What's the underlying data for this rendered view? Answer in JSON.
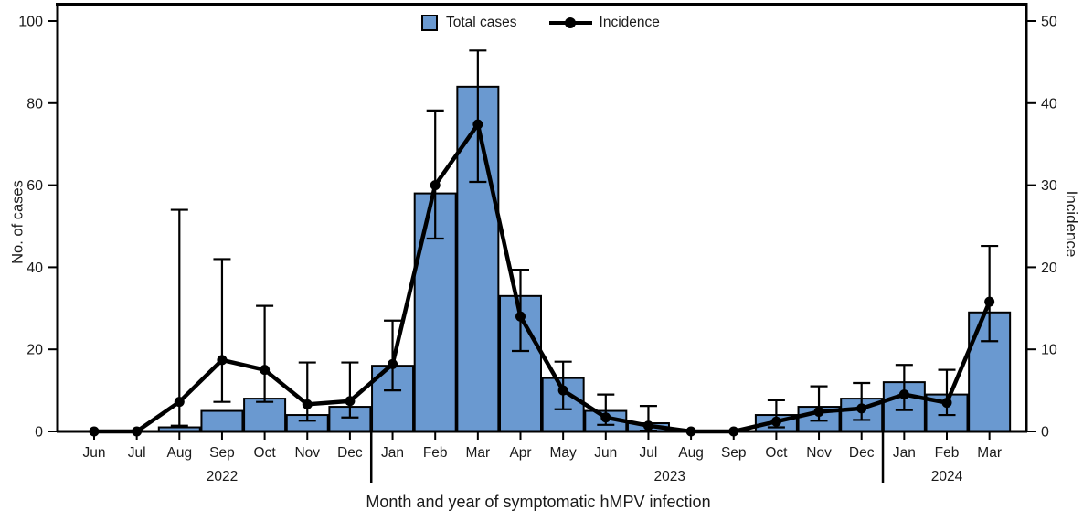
{
  "figure": {
    "legend": [
      {
        "swatch": "blue-square",
        "label": "Total cases"
      },
      {
        "swatch": "black-line-with-dot",
        "label": "Incidence"
      }
    ]
  },
  "chart_data": {
    "type": "bar+line",
    "title": "",
    "x_axis_label": "Month and year of symptomatic hMPV infection",
    "categories": [
      "Jun",
      "Jul",
      "Aug",
      "Sep",
      "Oct",
      "Nov",
      "Dec",
      "Jan",
      "Feb",
      "Mar",
      "Apr",
      "May",
      "Jun",
      "Jul",
      "Aug",
      "Sep",
      "Oct",
      "Nov",
      "Dec",
      "Jan",
      "Feb",
      "Mar"
    ],
    "year_groups": [
      {
        "label": "2022",
        "from_index": 0,
        "to_index": 6,
        "label_center_index": 3
      },
      {
        "label": "2023",
        "from_index": 7,
        "to_index": 18,
        "label_center_index": 13.5
      },
      {
        "label": "2024",
        "from_index": 19,
        "to_index": 21,
        "label_center_index": 20
      }
    ],
    "left_axis": {
      "title": "No. of cases",
      "min": 0,
      "max": 100,
      "tick_step": 20,
      "ticks": [
        0,
        20,
        40,
        60,
        80,
        100
      ]
    },
    "right_axis": {
      "title": "Incidence",
      "min": 0,
      "max": 50,
      "tick_step": 10,
      "ticks": [
        0,
        10,
        20,
        30,
        40,
        50
      ]
    },
    "series": [
      {
        "name": "Total cases",
        "type": "bar",
        "axis": "left",
        "color": "#6A99D0",
        "border_color": "#000000",
        "values": [
          0,
          0,
          1,
          5,
          8,
          4,
          6,
          16,
          58,
          84,
          33,
          13,
          5,
          2,
          0,
          0,
          4,
          6,
          8,
          12,
          9,
          29
        ]
      },
      {
        "name": "Incidence",
        "type": "line",
        "axis": "right",
        "color": "#000000",
        "values": [
          0,
          0,
          3.6,
          8.7,
          7.5,
          3.3,
          3.7,
          8.2,
          30,
          37.4,
          14,
          5,
          1.7,
          0.7,
          0,
          0,
          1.2,
          2.4,
          2.8,
          4.5,
          3.5,
          15.8
        ],
        "ci_low": [
          null,
          null,
          0.7,
          3.6,
          3.6,
          1.3,
          1.7,
          5,
          23.5,
          30.4,
          9.8,
          2.7,
          0.8,
          0.1,
          null,
          null,
          0.5,
          1.3,
          1.4,
          2.6,
          2,
          11
        ],
        "ci_high": [
          null,
          null,
          27,
          21,
          15.3,
          8.4,
          8.4,
          13.5,
          39.1,
          46.4,
          19.7,
          8.5,
          4.5,
          3.1,
          null,
          null,
          3.8,
          5.5,
          5.9,
          8.1,
          7.5,
          22.6
        ]
      }
    ],
    "legend_position": "top-center",
    "grid": false
  }
}
